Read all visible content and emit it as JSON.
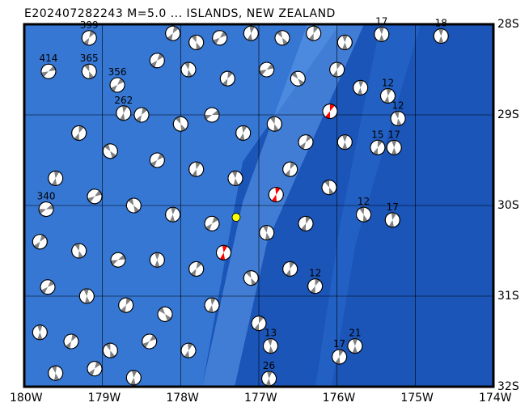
{
  "title": "E202407282243 M=5.0 ... ISLANDS, NEW ZEALAND",
  "map": {
    "lon_range": [
      -180,
      -174
    ],
    "lat_range": [
      -32,
      -28
    ],
    "lon_ticks": [
      {
        "value": -180,
        "label": "180W"
      },
      {
        "value": -179,
        "label": "179W"
      },
      {
        "value": -178,
        "label": "178W"
      },
      {
        "value": -177,
        "label": "177W"
      },
      {
        "value": -176,
        "label": "176W"
      },
      {
        "value": -175,
        "label": "175W"
      },
      {
        "value": -174,
        "label": "174W"
      }
    ],
    "lat_ticks": [
      {
        "value": -28,
        "label": "28S"
      },
      {
        "value": -29,
        "label": "29S"
      },
      {
        "value": -30,
        "label": "30S"
      },
      {
        "value": -31,
        "label": "31S"
      },
      {
        "value": -32,
        "label": "32S"
      }
    ],
    "colors": {
      "deep_ocean": "#1b55b8",
      "shallow_ocean": "#3d7fdb",
      "ridge": "#5c98e8",
      "mechanism_fill": "#808080",
      "highlight": "#ff0000",
      "epicenter": "#ffff00"
    },
    "epicenter": {
      "lon": -177.29,
      "lat": -30.13
    },
    "highlighted_events": [
      {
        "lon": -176.09,
        "lat": -28.96,
        "rot": 20
      },
      {
        "lon": -176.78,
        "lat": -29.88,
        "rot": 15
      },
      {
        "lon": -177.45,
        "lat": -30.52,
        "rot": 10
      }
    ],
    "events": [
      [
        -179.17,
        -28.15,
        "399",
        30
      ],
      [
        -179.69,
        -28.52,
        "414",
        60
      ],
      [
        -179.17,
        -28.52,
        "365",
        -20
      ],
      [
        -178.81,
        -28.67,
        "356",
        45
      ],
      [
        -178.73,
        -28.98,
        "262",
        10
      ],
      [
        -179.72,
        -30.04,
        "340",
        70
      ],
      [
        -175.43,
        -28.11,
        "17",
        0
      ],
      [
        -174.67,
        -28.13,
        "18",
        0
      ],
      [
        -175.35,
        -28.79,
        "12",
        10
      ],
      [
        -175.22,
        -29.04,
        "12",
        -10
      ],
      [
        -175.48,
        -29.36,
        "15",
        20
      ],
      [
        -175.27,
        -29.36,
        "17",
        0
      ],
      [
        -175.29,
        -30.16,
        "17",
        10
      ],
      [
        -175.66,
        -30.1,
        "12",
        -15
      ],
      [
        -175.77,
        -31.55,
        "21",
        0
      ],
      [
        -175.97,
        -31.67,
        "17",
        15
      ],
      [
        -176.87,
        -31.91,
        "26",
        5
      ],
      [
        -176.85,
        -31.55,
        "13",
        -5
      ],
      [
        -176.28,
        -30.89,
        "12",
        20
      ],
      [
        -178.1,
        -28.1,
        "",
        30
      ],
      [
        -177.8,
        -28.2,
        "",
        -20
      ],
      [
        -177.5,
        -28.15,
        "",
        50
      ],
      [
        -177.1,
        -28.1,
        "",
        10
      ],
      [
        -176.7,
        -28.15,
        "",
        -30
      ],
      [
        -176.3,
        -28.1,
        "",
        20
      ],
      [
        -175.9,
        -28.2,
        "",
        0
      ],
      [
        -178.3,
        -28.4,
        "",
        40
      ],
      [
        -177.9,
        -28.5,
        "",
        -10
      ],
      [
        -177.4,
        -28.6,
        "",
        25
      ],
      [
        -176.9,
        -28.5,
        "",
        60
      ],
      [
        -176.5,
        -28.6,
        "",
        -40
      ],
      [
        -176.0,
        -28.5,
        "",
        15
      ],
      [
        -175.7,
        -28.7,
        "",
        5
      ],
      [
        -178.5,
        -29.0,
        "",
        30
      ],
      [
        -178.0,
        -29.1,
        "",
        -25
      ],
      [
        -177.6,
        -29.0,
        "",
        70
      ],
      [
        -177.2,
        -29.2,
        "",
        10
      ],
      [
        -176.8,
        -29.1,
        "",
        -15
      ],
      [
        -176.4,
        -29.3,
        "",
        35
      ],
      [
        -175.9,
        -29.3,
        "",
        0
      ],
      [
        -179.3,
        -29.2,
        "",
        20
      ],
      [
        -178.9,
        -29.4,
        "",
        -35
      ],
      [
        -178.3,
        -29.5,
        "",
        45
      ],
      [
        -177.8,
        -29.6,
        "",
        15
      ],
      [
        -177.3,
        -29.7,
        "",
        -5
      ],
      [
        -176.6,
        -29.6,
        "",
        25
      ],
      [
        -176.1,
        -29.8,
        "",
        -20
      ],
      [
        -179.6,
        -29.7,
        "",
        10
      ],
      [
        -179.1,
        -29.9,
        "",
        55
      ],
      [
        -178.6,
        -30.0,
        "",
        -30
      ],
      [
        -178.1,
        -30.1,
        "",
        5
      ],
      [
        -177.6,
        -30.2,
        "",
        40
      ],
      [
        -176.9,
        -30.3,
        "",
        -10
      ],
      [
        -176.4,
        -30.2,
        "",
        20
      ],
      [
        -179.8,
        -30.4,
        "",
        35
      ],
      [
        -179.3,
        -30.5,
        "",
        -15
      ],
      [
        -178.8,
        -30.6,
        "",
        65
      ],
      [
        -178.3,
        -30.6,
        "",
        0
      ],
      [
        -177.8,
        -30.7,
        "",
        30
      ],
      [
        -177.1,
        -30.8,
        "",
        -25
      ],
      [
        -176.6,
        -30.7,
        "",
        15
      ],
      [
        -179.7,
        -30.9,
        "",
        45
      ],
      [
        -179.2,
        -31.0,
        "",
        -5
      ],
      [
        -178.7,
        -31.1,
        "",
        25
      ],
      [
        -178.2,
        -31.2,
        "",
        -40
      ],
      [
        -177.6,
        -31.1,
        "",
        10
      ],
      [
        -177.0,
        -31.3,
        "",
        20
      ],
      [
        -179.8,
        -31.4,
        "",
        0
      ],
      [
        -179.4,
        -31.5,
        "",
        30
      ],
      [
        -178.9,
        -31.6,
        "",
        -20
      ],
      [
        -178.4,
        -31.5,
        "",
        50
      ],
      [
        -177.9,
        -31.6,
        "",
        15
      ],
      [
        -179.6,
        -31.85,
        "",
        -10
      ],
      [
        -179.1,
        -31.8,
        "",
        35
      ],
      [
        -178.6,
        -31.9,
        "",
        5
      ]
    ]
  }
}
